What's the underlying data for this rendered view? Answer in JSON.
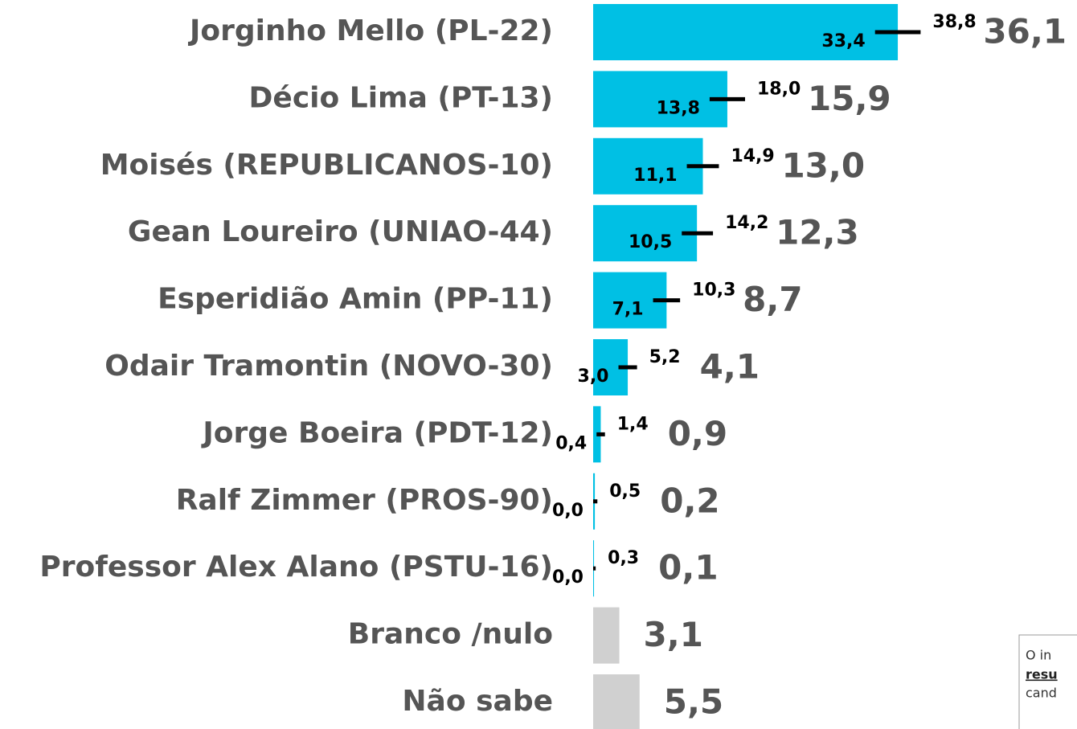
{
  "chart_data": {
    "type": "bar",
    "categories": [
      "Jorginho Mello (PL-22)",
      "Décio Lima (PT-13)",
      "Moisés (REPUBLICANOS-10)",
      "Gean Loureiro (UNIAO-44)",
      "Esperidião Amin (PP-11)",
      "Odair Tramontin (NOVO-30)",
      "Jorge Boeira (PDT-12)",
      "Ralf Zimmer (PROS-90)",
      "Professor Alex Alano (PSTU-16)",
      "Branco /nulo",
      "Não sabe"
    ],
    "values": [
      36.1,
      15.9,
      13.0,
      12.3,
      8.7,
      4.1,
      0.9,
      0.2,
      0.1,
      3.1,
      5.5
    ],
    "value_labels": [
      "36,1",
      "15,9",
      "13,0",
      "12,3",
      "8,7",
      "4,1",
      "0,9",
      "0,2",
      "0,1",
      "3,1",
      "5,5"
    ],
    "low": [
      33.4,
      13.8,
      11.1,
      10.5,
      7.1,
      3.0,
      0.4,
      0.0,
      0.0,
      null,
      null
    ],
    "low_labels": [
      "33,4",
      "13,8",
      "11,1",
      "10,5",
      "7,1",
      "3,0",
      "0,4",
      "0,0",
      "0,0",
      null,
      null
    ],
    "high": [
      38.8,
      18.0,
      14.9,
      14.2,
      10.3,
      5.2,
      1.4,
      0.5,
      0.3,
      null,
      null
    ],
    "high_labels": [
      "38,8",
      "18,0",
      "14,9",
      "14,2",
      "10,3",
      "5,2",
      "1,4",
      "0,5",
      "0,3",
      null,
      null
    ],
    "colors": [
      "#00c0e4",
      "#00c0e4",
      "#00c0e4",
      "#00c0e4",
      "#00c0e4",
      "#00c0e4",
      "#00c0e4",
      "#00c0e4",
      "#00c0e4",
      "#d0d0d0",
      "#d0d0d0"
    ]
  },
  "notice": {
    "lines": [
      "O in",
      "resu",
      "cand"
    ]
  }
}
